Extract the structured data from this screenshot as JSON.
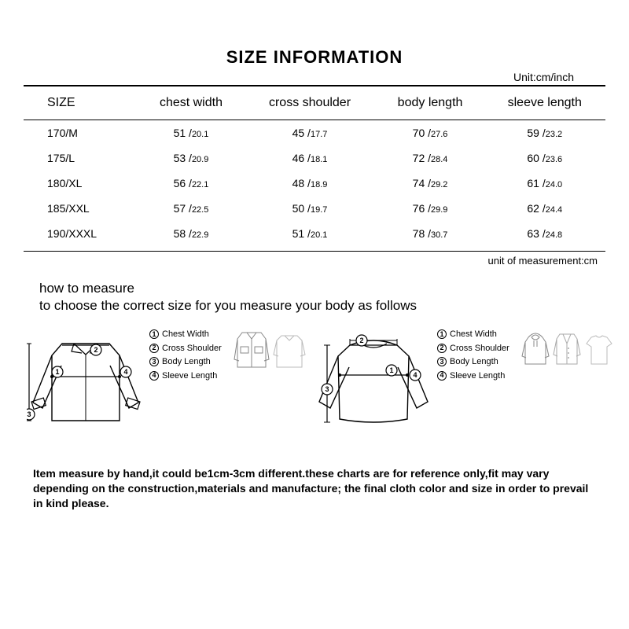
{
  "title": "SIZE INFORMATION",
  "unit_top": "Unit:cm/inch",
  "columns": [
    "SIZE",
    "chest width",
    "cross shoulder",
    "body  length",
    "sleeve length"
  ],
  "rows": [
    {
      "size": "170/M",
      "chest": {
        "cm": "51",
        "in": "20.1"
      },
      "shoulder": {
        "cm": "45",
        "in": "17.7"
      },
      "body": {
        "cm": "70",
        "in": "27.6"
      },
      "sleeve": {
        "cm": "59",
        "in": "23.2"
      }
    },
    {
      "size": "175/L",
      "chest": {
        "cm": "53",
        "in": "20.9"
      },
      "shoulder": {
        "cm": "46",
        "in": "18.1"
      },
      "body": {
        "cm": "72",
        "in": "28.4"
      },
      "sleeve": {
        "cm": "60",
        "in": "23.6"
      }
    },
    {
      "size": "180/XL",
      "chest": {
        "cm": "56",
        "in": "22.1"
      },
      "shoulder": {
        "cm": "48",
        "in": "18.9"
      },
      "body": {
        "cm": "74",
        "in": "29.2"
      },
      "sleeve": {
        "cm": "61",
        "in": "24.0"
      }
    },
    {
      "size": "185/XXL",
      "chest": {
        "cm": "57",
        "in": "22.5"
      },
      "shoulder": {
        "cm": "50",
        "in": "19.7"
      },
      "body": {
        "cm": "76",
        "in": "29.9"
      },
      "sleeve": {
        "cm": "62",
        "in": "24.4"
      }
    },
    {
      "size": "190/XXXL",
      "chest": {
        "cm": "58",
        "in": "22.9"
      },
      "shoulder": {
        "cm": "51",
        "in": "20.1"
      },
      "body": {
        "cm": "78",
        "in": "30.7"
      },
      "sleeve": {
        "cm": "63",
        "in": "24.8"
      }
    }
  ],
  "unit_measure": "unit of measurement:cm",
  "howto": {
    "line1": "how to measure",
    "line2": "to choose the correct size for you measure your body as follows"
  },
  "legend": [
    {
      "num": "1",
      "label": "Chest Width"
    },
    {
      "num": "2",
      "label": "Cross Shoulder"
    },
    {
      "num": "3",
      "label": "Body Length"
    },
    {
      "num": "4",
      "label": "Sleeve Length"
    }
  ],
  "note": "Item measure by hand,it could be1cm-3cm different.these charts are for reference only,fit may vary depending on the construction,materials and manufacture; the final cloth color and   size  in order to prevail in kind please.",
  "colors": {
    "stroke": "#000000",
    "fill_light": "#f5f5f5",
    "bg": "#ffffff"
  }
}
